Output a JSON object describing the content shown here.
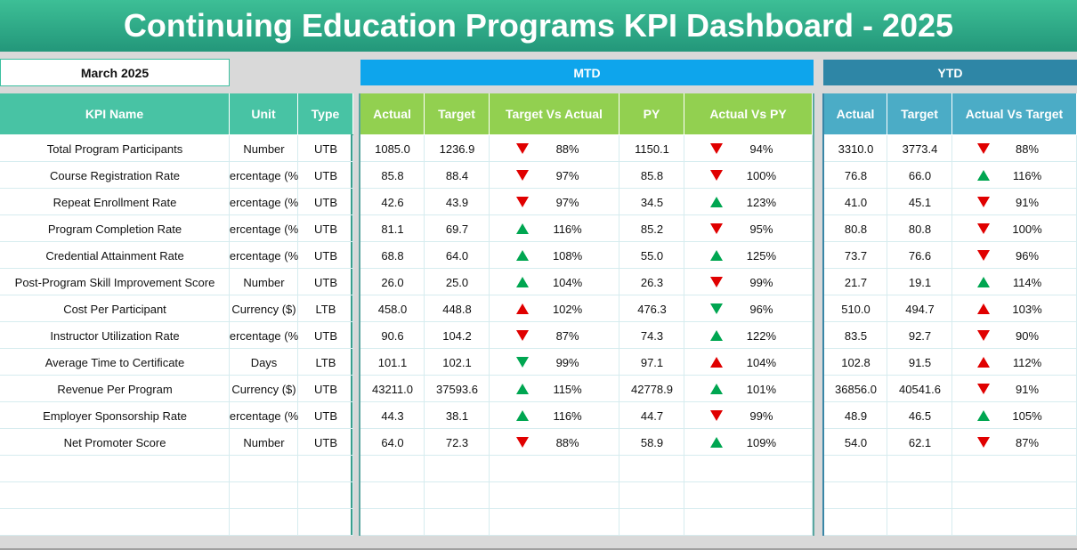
{
  "header": {
    "title": "Continuing Education Programs KPI Dashboard - 2025",
    "month": "March 2025",
    "mtd_label": "MTD",
    "ytd_label": "YTD"
  },
  "table": {
    "left_headers": [
      "KPI Name",
      "Unit",
      "Type"
    ],
    "mtd_headers": [
      "Actual",
      "Target",
      "Target Vs Actual",
      "PY",
      "Actual Vs PY"
    ],
    "ytd_headers": [
      "Actual",
      "Target",
      "Actual Vs Target"
    ],
    "arrow_colors": {
      "red": "#e00000",
      "green": "#00a651"
    },
    "rows": [
      {
        "left": [
          "Total Program Participants",
          "Number",
          "UTB"
        ],
        "mtd": [
          "1085.0",
          "1236.9",
          "88%",
          "1150.1",
          "94%"
        ],
        "ytd": [
          "3310.0",
          "3773.4",
          "88%"
        ],
        "arrows": [
          "down red",
          "down red",
          "down red"
        ]
      },
      {
        "left": [
          "Course Registration Rate",
          "ercentage (%",
          "UTB"
        ],
        "mtd": [
          "85.8",
          "88.4",
          "97%",
          "85.8",
          "100%"
        ],
        "ytd": [
          "76.8",
          "66.0",
          "116%"
        ],
        "arrows": [
          "down red",
          "down red",
          "up green"
        ]
      },
      {
        "left": [
          "Repeat Enrollment Rate",
          "ercentage (%",
          "UTB"
        ],
        "mtd": [
          "42.6",
          "43.9",
          "97%",
          "34.5",
          "123%"
        ],
        "ytd": [
          "41.0",
          "45.1",
          "91%"
        ],
        "arrows": [
          "down red",
          "up green",
          "down red"
        ]
      },
      {
        "left": [
          "Program Completion Rate",
          "ercentage (%",
          "UTB"
        ],
        "mtd": [
          "81.1",
          "69.7",
          "116%",
          "85.2",
          "95%"
        ],
        "ytd": [
          "80.8",
          "80.8",
          "100%"
        ],
        "arrows": [
          "up green",
          "down red",
          "down red"
        ]
      },
      {
        "left": [
          "Credential Attainment Rate",
          "ercentage (%",
          "UTB"
        ],
        "mtd": [
          "68.8",
          "64.0",
          "108%",
          "55.0",
          "125%"
        ],
        "ytd": [
          "73.7",
          "76.6",
          "96%"
        ],
        "arrows": [
          "up green",
          "up green",
          "down red"
        ]
      },
      {
        "left": [
          "Post-Program Skill Improvement Score",
          "Number",
          "UTB"
        ],
        "mtd": [
          "26.0",
          "25.0",
          "104%",
          "26.3",
          "99%"
        ],
        "ytd": [
          "21.7",
          "19.1",
          "114%"
        ],
        "arrows": [
          "up green",
          "down red",
          "up green"
        ]
      },
      {
        "left": [
          "Cost Per Participant",
          "Currency ($)",
          "LTB"
        ],
        "mtd": [
          "458.0",
          "448.8",
          "102%",
          "476.3",
          "96%"
        ],
        "ytd": [
          "510.0",
          "494.7",
          "103%"
        ],
        "arrows": [
          "up red",
          "down green",
          "up red"
        ]
      },
      {
        "left": [
          "Instructor Utilization Rate",
          "ercentage (%",
          "UTB"
        ],
        "mtd": [
          "90.6",
          "104.2",
          "87%",
          "74.3",
          "122%"
        ],
        "ytd": [
          "83.5",
          "92.7",
          "90%"
        ],
        "arrows": [
          "down red",
          "up green",
          "down red"
        ]
      },
      {
        "left": [
          "Average Time to Certificate",
          "Days",
          "LTB"
        ],
        "mtd": [
          "101.1",
          "102.1",
          "99%",
          "97.1",
          "104%"
        ],
        "ytd": [
          "102.8",
          "91.5",
          "112%"
        ],
        "arrows": [
          "down green",
          "up red",
          "up red"
        ]
      },
      {
        "left": [
          "Revenue Per Program",
          "Currency ($)",
          "UTB"
        ],
        "mtd": [
          "43211.0",
          "37593.6",
          "115%",
          "42778.9",
          "101%"
        ],
        "ytd": [
          "36856.0",
          "40541.6",
          "91%"
        ],
        "arrows": [
          "up green",
          "up green",
          "down red"
        ]
      },
      {
        "left": [
          "Employer Sponsorship Rate",
          "ercentage (%",
          "UTB"
        ],
        "mtd": [
          "44.3",
          "38.1",
          "116%",
          "44.7",
          "99%"
        ],
        "ytd": [
          "48.9",
          "46.5",
          "105%"
        ],
        "arrows": [
          "up green",
          "down red",
          "up green"
        ]
      },
      {
        "left": [
          "Net Promoter Score",
          "Number",
          "UTB"
        ],
        "mtd": [
          "64.0",
          "72.3",
          "88%",
          "58.9",
          "109%"
        ],
        "ytd": [
          "54.0",
          "62.1",
          "87%"
        ],
        "arrows": [
          "down red",
          "up green",
          "down red"
        ]
      }
    ]
  }
}
